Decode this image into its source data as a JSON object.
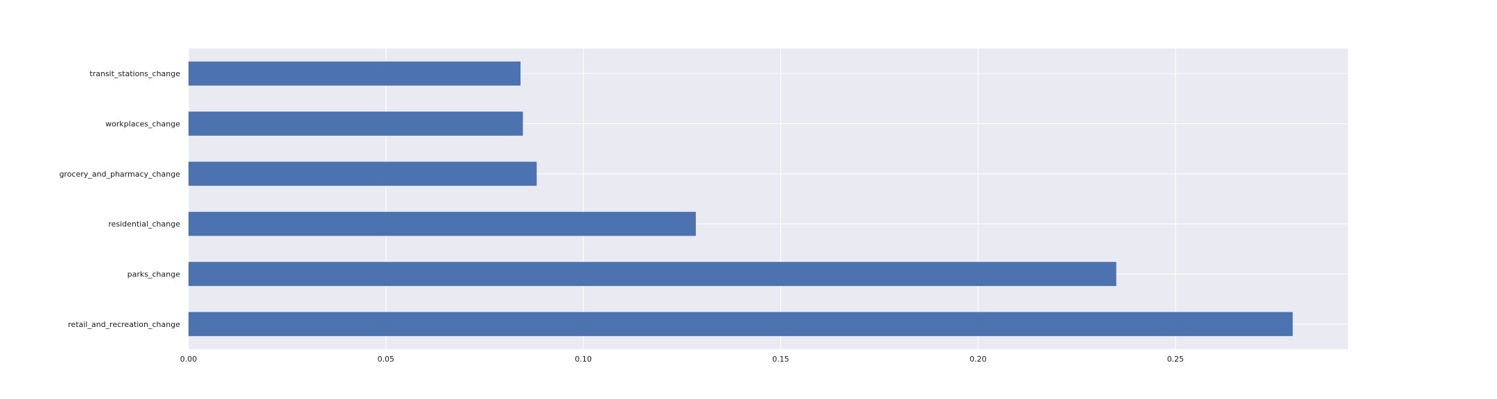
{
  "chart_data": {
    "type": "bar",
    "orientation": "horizontal",
    "title": "",
    "xlabel": "",
    "ylabel": "",
    "categories": [
      "retail_and_recreation_change",
      "parks_change",
      "residential_change",
      "grocery_and_pharmacy_change",
      "workplaces_change",
      "transit_stations_change"
    ],
    "values": [
      0.2797,
      0.235,
      0.1285,
      0.0882,
      0.0847,
      0.0841
    ],
    "xlim": [
      0,
      0.2937
    ],
    "xticks": [
      "0.00",
      "0.05",
      "0.10",
      "0.15",
      "0.20",
      "0.25"
    ],
    "grid": true,
    "legend": "none",
    "colors": {
      "bar": "#4C72B0",
      "plot_background": "#EAEAF2",
      "grid": "#FFFFFF"
    }
  }
}
